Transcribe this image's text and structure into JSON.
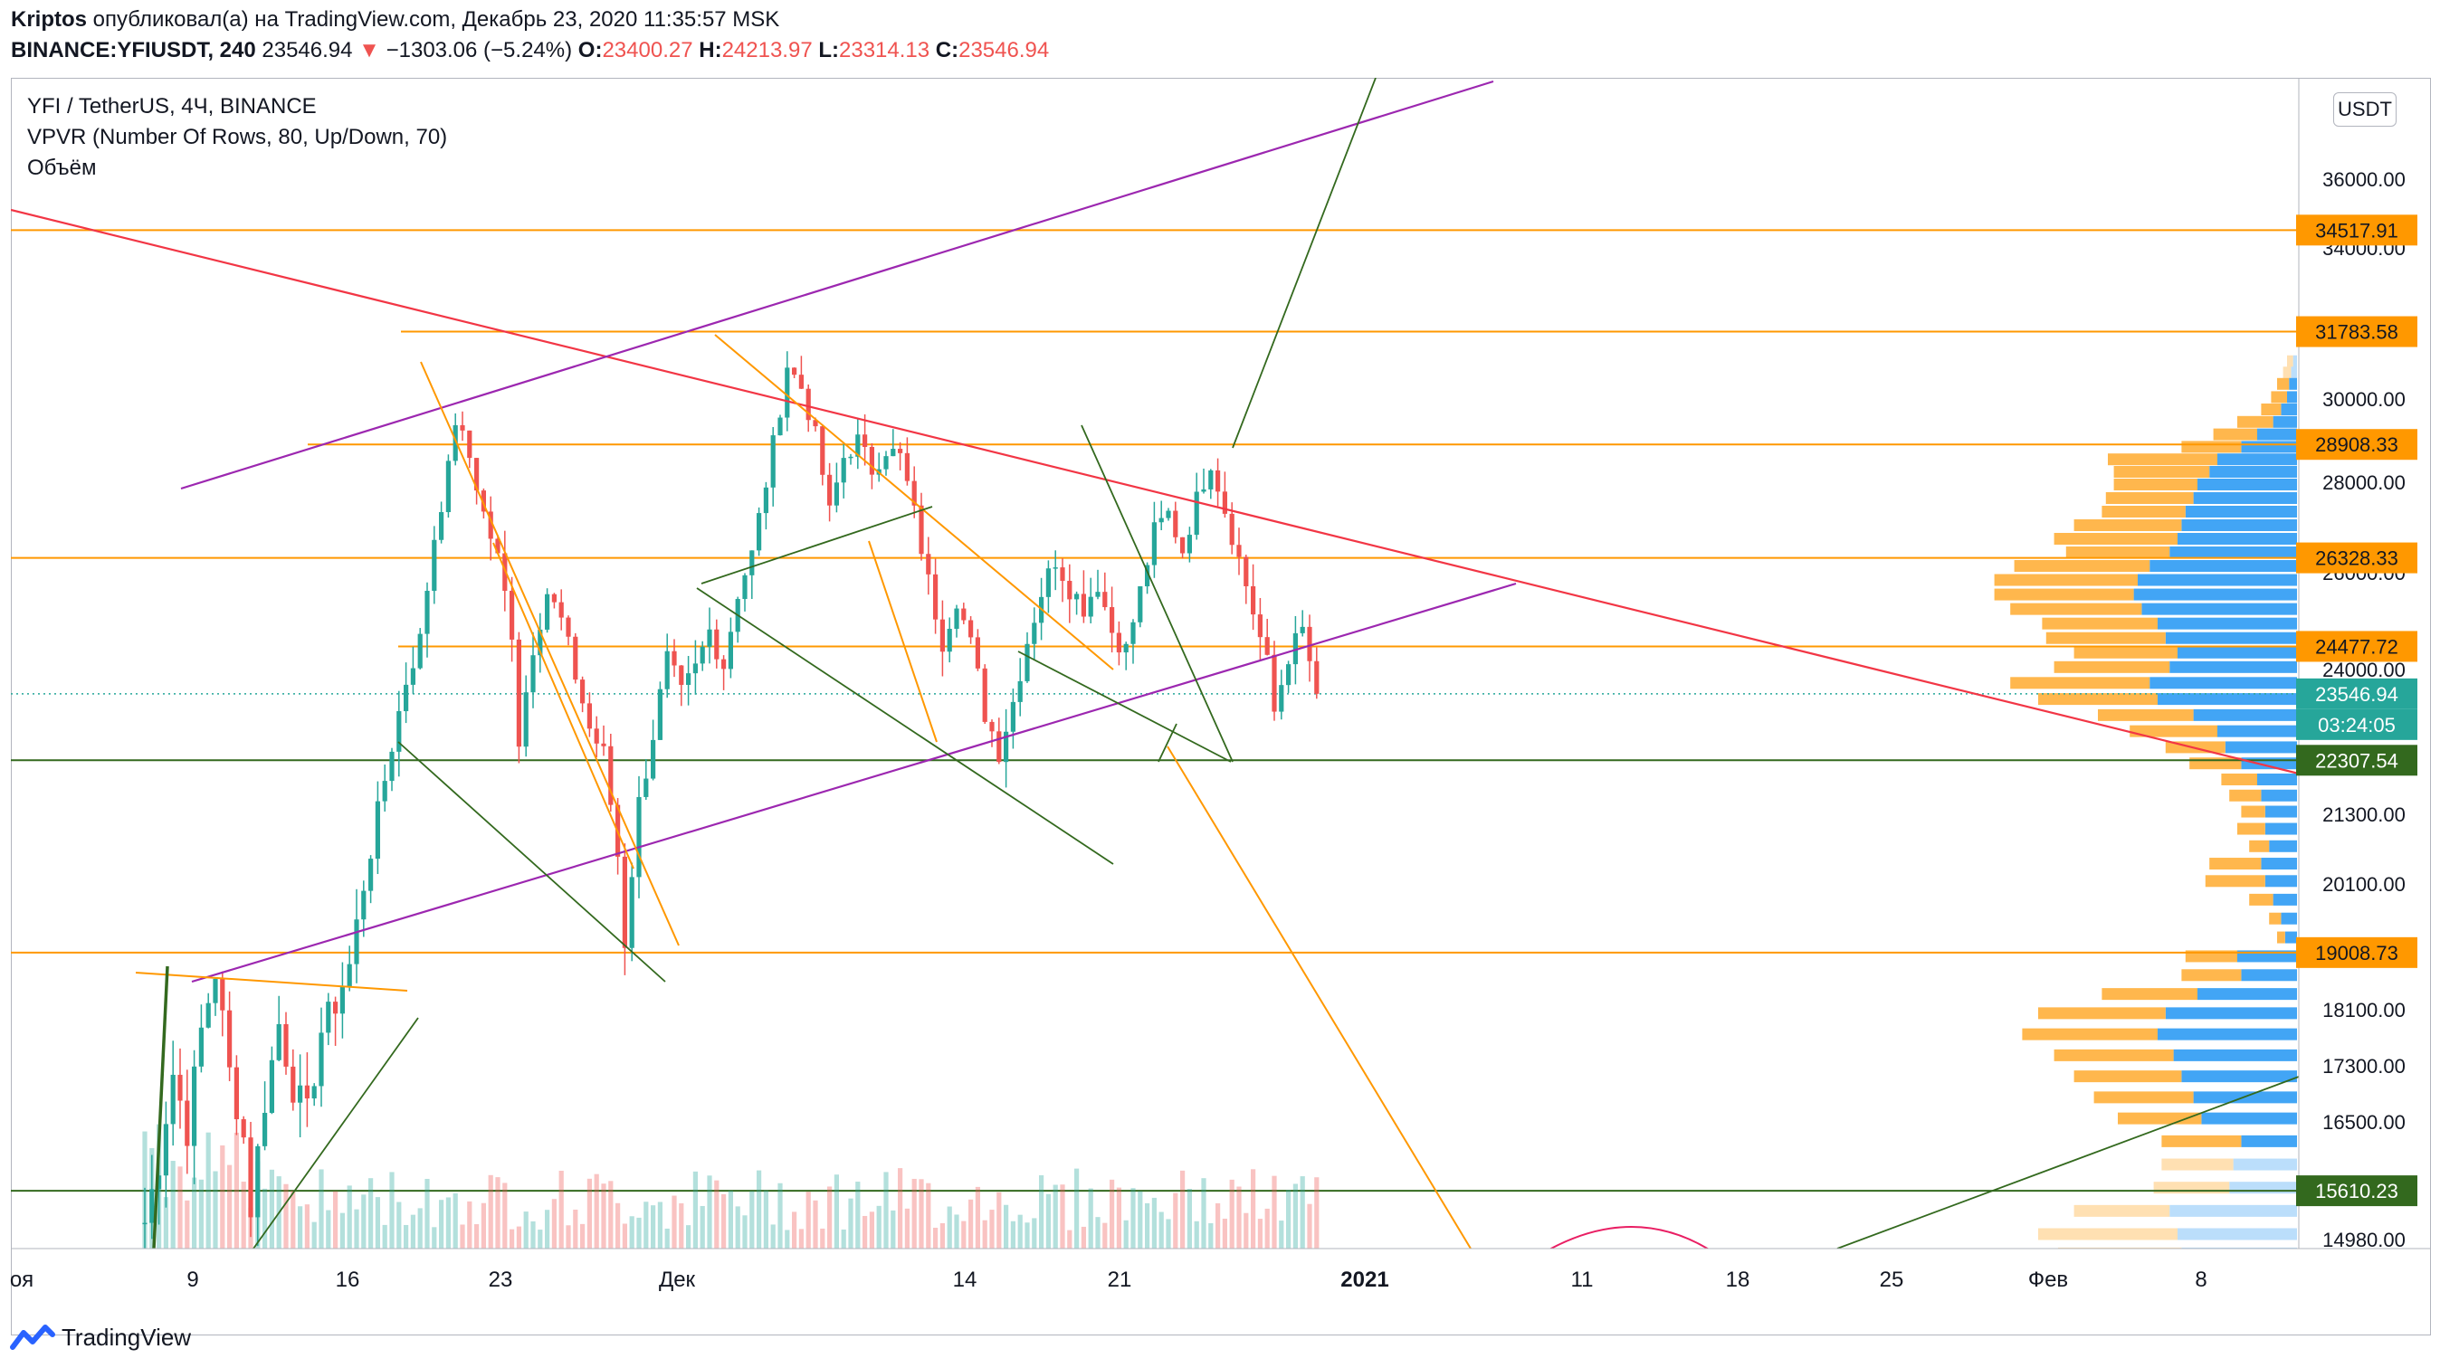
{
  "header": {
    "author": "Kriptos",
    "published_line": " опубликовал(а) на TradingView.com, Декабрь 23, 2020 11:35:57 MSK",
    "symbol": "BINANCE:YFIUSDT, 240",
    "last": "23546.94",
    "arrow": "▼",
    "change": "−1303.06 (−5.24%)",
    "o_label": "O:",
    "o_value": "23400.27",
    "h_label": "H:",
    "h_value": "24213.97",
    "l_label": "L:",
    "l_value": "23314.13",
    "c_label": "C:",
    "c_value": "23546.94"
  },
  "legend": {
    "title": "YFI / TetherUS, 4Ч, BINANCE",
    "indicator": "VPVR (Number Of Rows, 80, Up/Down, 70)",
    "volume": "Объём"
  },
  "currency_button": "USDT",
  "footer": {
    "brand": "TradingView"
  },
  "colors": {
    "up": "#26a69a",
    "down": "#ef5350",
    "orange": "#ff9800",
    "purple": "#9c27b0",
    "green": "#33691e",
    "trend_red": "#f23645",
    "vp_up": "#42a5f5",
    "vp_down": "#ffb74d"
  },
  "chart_data": {
    "type": "candlestick",
    "title": "YFI / TetherUS, 4Ч, BINANCE",
    "timeframe": "240",
    "x_ticks": [
      "оя",
      "9",
      "16",
      "23",
      "Дек",
      "14",
      "21",
      "2021",
      "11",
      "18",
      "25",
      "Фев",
      "8"
    ],
    "y_ticks": [
      36000,
      34000,
      30000,
      28000,
      26000,
      24000,
      21300,
      20100,
      18100,
      17300,
      16500,
      14980
    ],
    "y_tick_labels": [
      "36000.00",
      "34000.00",
      "30000.00",
      "28000.00",
      "26000.00",
      "24000.00",
      "21300.00",
      "20100.00",
      "18100.00",
      "17300.00",
      "16500.00",
      "14980.00"
    ],
    "ylim": [
      14700,
      38400
    ],
    "horizontal_levels": [
      {
        "price": 34517.91,
        "label": "34517.91",
        "color": "#ff9800"
      },
      {
        "price": 31783.58,
        "label": "31783.58",
        "color": "#ff9800"
      },
      {
        "price": 28908.33,
        "label": "28908.33",
        "color": "#ff9800"
      },
      {
        "price": 26328.33,
        "label": "26328.33",
        "color": "#ff9800"
      },
      {
        "price": 24477.72,
        "label": "24477.72",
        "color": "#ff9800"
      },
      {
        "price": 22307.54,
        "label": "22307.54",
        "color": "#33691e"
      },
      {
        "price": 19008.73,
        "label": "19008.73",
        "color": "#ff9800"
      },
      {
        "price": 15610.23,
        "label": "15610.23",
        "color": "#33691e"
      }
    ],
    "last_price": {
      "value": 23546.94,
      "label": "23546.94",
      "countdown": "03:24:05"
    },
    "price_path": [
      [
        0,
        15200
      ],
      [
        2,
        16000
      ],
      [
        4,
        17200
      ],
      [
        6,
        16400
      ],
      [
        8,
        17800
      ],
      [
        10,
        18700
      ],
      [
        12,
        17200
      ],
      [
        14,
        16300
      ],
      [
        15,
        15400
      ],
      [
        17,
        16800
      ],
      [
        19,
        17900
      ],
      [
        21,
        17000
      ],
      [
        23,
        16600
      ],
      [
        25,
        17800
      ],
      [
        27,
        18200
      ],
      [
        29,
        18800
      ],
      [
        31,
        20100
      ],
      [
        33,
        21300
      ],
      [
        35,
        22600
      ],
      [
        37,
        23800
      ],
      [
        39,
        24600
      ],
      [
        41,
        26800
      ],
      [
        43,
        28300
      ],
      [
        44,
        29500
      ],
      [
        46,
        28600
      ],
      [
        48,
        27300
      ],
      [
        50,
        26300
      ],
      [
        52,
        24800
      ],
      [
        53,
        22700
      ],
      [
        55,
        24500
      ],
      [
        57,
        25600
      ],
      [
        59,
        25000
      ],
      [
        61,
        23900
      ],
      [
        63,
        22900
      ],
      [
        65,
        22400
      ],
      [
        67,
        20600
      ],
      [
        68,
        19200
      ],
      [
        70,
        21500
      ],
      [
        72,
        22800
      ],
      [
        74,
        24200
      ],
      [
        76,
        23500
      ],
      [
        78,
        24000
      ],
      [
        80,
        24800
      ],
      [
        82,
        24100
      ],
      [
        84,
        25600
      ],
      [
        86,
        26400
      ],
      [
        88,
        28000
      ],
      [
        90,
        29800
      ],
      [
        91,
        30900
      ],
      [
        93,
        30300
      ],
      [
        95,
        29100
      ],
      [
        97,
        27300
      ],
      [
        99,
        28600
      ],
      [
        101,
        29000
      ],
      [
        103,
        28300
      ],
      [
        105,
        28800
      ],
      [
        107,
        28600
      ],
      [
        109,
        27300
      ],
      [
        111,
        25800
      ],
      [
        113,
        24600
      ],
      [
        115,
        25500
      ],
      [
        117,
        24500
      ],
      [
        119,
        23200
      ],
      [
        121,
        22500
      ],
      [
        123,
        23400
      ],
      [
        125,
        24600
      ],
      [
        127,
        25600
      ],
      [
        129,
        26300
      ],
      [
        131,
        25700
      ],
      [
        133,
        25300
      ],
      [
        135,
        25800
      ],
      [
        137,
        24800
      ],
      [
        139,
        24400
      ],
      [
        141,
        25600
      ],
      [
        143,
        26900
      ],
      [
        145,
        27300
      ],
      [
        147,
        26500
      ],
      [
        149,
        27600
      ],
      [
        151,
        28500
      ],
      [
        153,
        27400
      ],
      [
        155,
        26300
      ],
      [
        157,
        25200
      ],
      [
        159,
        24100
      ],
      [
        160,
        23200
      ],
      [
        162,
        24300
      ],
      [
        164,
        24800
      ],
      [
        166,
        23546.94
      ]
    ],
    "volume_profile": [
      {
        "price": 31000,
        "up": 2,
        "down": 3
      },
      {
        "price": 30700,
        "up": 3,
        "down": 4
      },
      {
        "price": 30400,
        "up": 4,
        "down": 6
      },
      {
        "price": 30050,
        "up": 5,
        "down": 8
      },
      {
        "price": 29750,
        "up": 8,
        "down": 10
      },
      {
        "price": 29450,
        "up": 12,
        "down": 18
      },
      {
        "price": 29150,
        "up": 20,
        "down": 22
      },
      {
        "price": 28850,
        "up": 28,
        "down": 30
      },
      {
        "price": 28550,
        "up": 40,
        "down": 55
      },
      {
        "price": 28250,
        "up": 44,
        "down": 48
      },
      {
        "price": 27950,
        "up": 50,
        "down": 42
      },
      {
        "price": 27650,
        "up": 52,
        "down": 44
      },
      {
        "price": 27350,
        "up": 56,
        "down": 42
      },
      {
        "price": 27050,
        "up": 58,
        "down": 54
      },
      {
        "price": 26750,
        "up": 60,
        "down": 62
      },
      {
        "price": 26450,
        "up": 64,
        "down": 52
      },
      {
        "price": 26150,
        "up": 74,
        "down": 68
      },
      {
        "price": 25850,
        "up": 80,
        "down": 72
      },
      {
        "price": 25550,
        "up": 82,
        "down": 70
      },
      {
        "price": 25250,
        "up": 78,
        "down": 66
      },
      {
        "price": 24950,
        "up": 70,
        "down": 58
      },
      {
        "price": 24650,
        "up": 66,
        "down": 60
      },
      {
        "price": 24350,
        "up": 60,
        "down": 52
      },
      {
        "price": 24050,
        "up": 64,
        "down": 58
      },
      {
        "price": 23750,
        "up": 74,
        "down": 70
      },
      {
        "price": 23450,
        "up": 70,
        "down": 60
      },
      {
        "price": 23150,
        "up": 52,
        "down": 48
      },
      {
        "price": 22850,
        "up": 40,
        "down": 44
      },
      {
        "price": 22550,
        "up": 36,
        "down": 30
      },
      {
        "price": 22250,
        "up": 28,
        "down": 26
      },
      {
        "price": 21950,
        "up": 20,
        "down": 18
      },
      {
        "price": 21650,
        "up": 18,
        "down": 16
      },
      {
        "price": 21350,
        "up": 16,
        "down": 12
      },
      {
        "price": 21050,
        "up": 16,
        "down": 14
      },
      {
        "price": 20750,
        "up": 14,
        "down": 10
      },
      {
        "price": 20450,
        "up": 18,
        "down": 26
      },
      {
        "price": 20150,
        "up": 16,
        "down": 30
      },
      {
        "price": 19850,
        "up": 12,
        "down": 12
      },
      {
        "price": 19550,
        "up": 8,
        "down": 6
      },
      {
        "price": 19250,
        "up": 6,
        "down": 4
      },
      {
        "price": 18950,
        "up": 30,
        "down": 26
      },
      {
        "price": 18650,
        "up": 28,
        "down": 30
      },
      {
        "price": 18350,
        "up": 50,
        "down": 48
      },
      {
        "price": 18050,
        "up": 66,
        "down": 64
      },
      {
        "price": 17750,
        "up": 70,
        "down": 68
      },
      {
        "price": 17450,
        "up": 62,
        "down": 60
      },
      {
        "price": 17150,
        "up": 58,
        "down": 54
      },
      {
        "price": 16850,
        "up": 52,
        "down": 50
      },
      {
        "price": 16550,
        "up": 48,
        "down": 42
      },
      {
        "price": 16250,
        "up": 28,
        "down": 40
      },
      {
        "price": 15950,
        "up": 32,
        "down": 36
      },
      {
        "price": 15650,
        "up": 34,
        "down": 38
      },
      {
        "price": 15350,
        "up": 64,
        "down": 48
      },
      {
        "price": 15050,
        "up": 60,
        "down": 70
      },
      {
        "price": 14800,
        "up": 58,
        "down": 62
      }
    ]
  }
}
